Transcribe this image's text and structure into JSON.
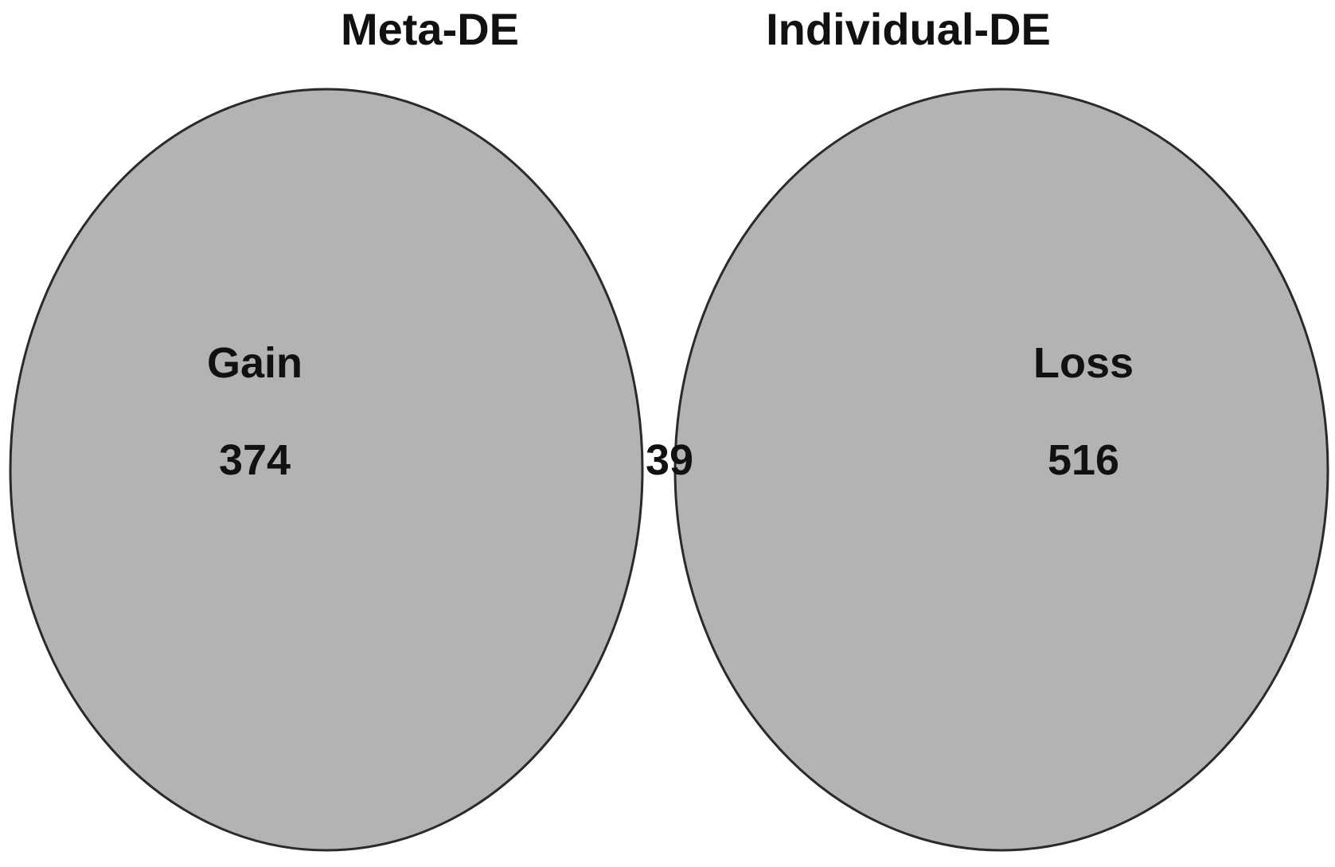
{
  "venn": {
    "sets": [
      {
        "title": "Meta-DE",
        "region_label": "Gain",
        "unique_count": "374"
      },
      {
        "title": "Individual-DE",
        "region_label": "Loss",
        "unique_count": "516"
      }
    ],
    "intersection_count": "39"
  },
  "colors": {
    "circle_fill": "#b3b3b3",
    "intersection_fill": "#878787",
    "outline": "#2a2a2a",
    "text": "#111111"
  }
}
